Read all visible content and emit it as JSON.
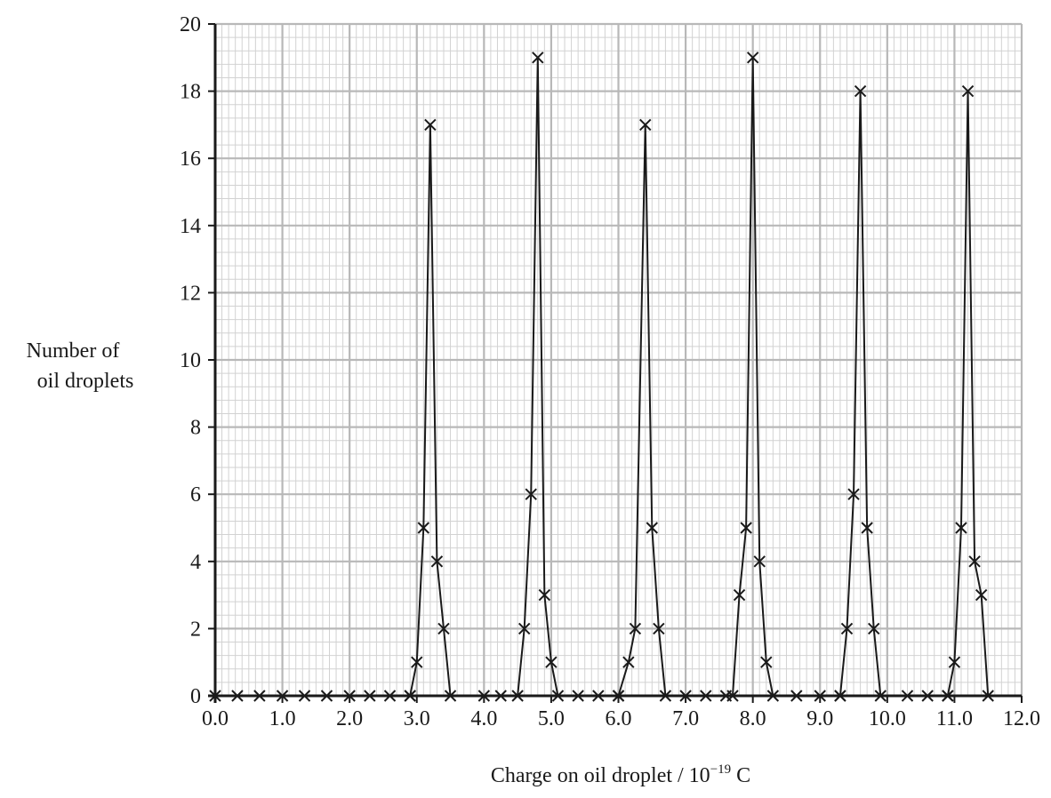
{
  "chart_data": {
    "type": "line",
    "title": "",
    "xlabel": {
      "prefix": "Charge on oil droplet / 10",
      "exponent": "−19",
      "unit": " C"
    },
    "ylabel_lines": [
      "Number of",
      "oil droplets"
    ],
    "xlim": [
      0,
      12
    ],
    "ylim": [
      0,
      20
    ],
    "x_ticks": [
      "0.0",
      "1.0",
      "2.0",
      "3.0",
      "4.0",
      "5.0",
      "6.0",
      "7.0",
      "8.0",
      "9.0",
      "10.0",
      "11.0",
      "12.0"
    ],
    "y_ticks": [
      "0",
      "2",
      "4",
      "6",
      "8",
      "10",
      "12",
      "14",
      "16",
      "18",
      "20"
    ],
    "grid": true,
    "grid_minor_per_major": 10,
    "marker": "x",
    "colors": {
      "line": "#1a1a1a",
      "grid_major": "#b8b8b8",
      "grid_minor": "#d2d2d2",
      "axis": "#1a1a1a"
    },
    "zero_points_x": [
      0,
      0.33,
      0.66,
      1.0,
      1.33,
      1.66,
      2.0,
      2.3,
      2.6,
      2.9,
      4.0,
      4.25,
      5.4,
      5.7,
      6.0,
      7.0,
      7.3,
      7.6,
      8.65,
      9.0,
      9.3,
      10.3,
      10.6,
      10.9
    ],
    "series": [
      {
        "x": [
          2.9,
          3.0,
          3.1,
          3.2,
          3.3,
          3.4,
          3.5
        ],
        "y": [
          0,
          1,
          5,
          17,
          4,
          2,
          0
        ]
      },
      {
        "x": [
          4.5,
          4.6,
          4.7,
          4.8,
          4.9,
          5.0,
          5.1
        ],
        "y": [
          0,
          2,
          6,
          19,
          3,
          1,
          0
        ]
      },
      {
        "x": [
          6.0,
          6.15,
          6.25,
          6.4,
          6.5,
          6.6,
          6.7
        ],
        "y": [
          0,
          1,
          2,
          17,
          5,
          2,
          0
        ]
      },
      {
        "x": [
          7.7,
          7.8,
          7.9,
          8.0,
          8.1,
          8.2,
          8.3
        ],
        "y": [
          0,
          3,
          5,
          19,
          4,
          1,
          0
        ]
      },
      {
        "x": [
          9.3,
          9.4,
          9.5,
          9.6,
          9.7,
          9.8,
          9.9
        ],
        "y": [
          0,
          2,
          6,
          18,
          5,
          2,
          0
        ]
      },
      {
        "x": [
          10.9,
          11.0,
          11.1,
          11.2,
          11.3,
          11.4,
          11.5
        ],
        "y": [
          0,
          1,
          5,
          18,
          4,
          3,
          0
        ]
      }
    ]
  }
}
